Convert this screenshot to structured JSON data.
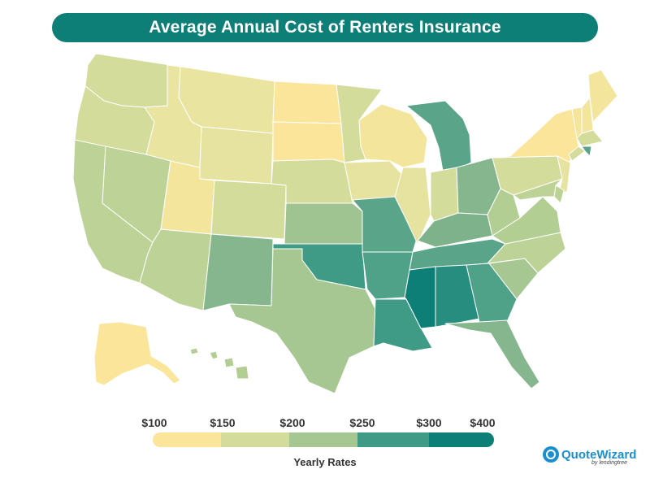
{
  "title": "Average Annual Cost of Renters Insurance",
  "legend": {
    "labels": [
      "$100",
      "$150",
      "$200",
      "$250",
      "$300",
      "$400"
    ],
    "colors": [
      "#fbe59b",
      "#d4dc9c",
      "#a6c791",
      "#73ad8a",
      "#3f9b86",
      "#0e7f77"
    ],
    "caption": "Yearly Rates"
  },
  "logo": {
    "name": "QuoteWizard",
    "sub": "by lendingtree"
  },
  "states": {
    "WA": "#d4dc9c",
    "OR": "#d4dc9c",
    "CA": "#bdd296",
    "NV": "#bdd296",
    "ID": "#e9e4a0",
    "MT": "#e9e4a0",
    "WY": "#e6e3a0",
    "UT": "#f3e59c",
    "AZ": "#bdd296",
    "CO": "#d4dc9c",
    "NM": "#85b68d",
    "ND": "#fbe59b",
    "SD": "#fbe59b",
    "NE": "#d4dc9c",
    "KS": "#9fc491",
    "OK": "#3f9b86",
    "TX": "#a6c791",
    "MN": "#d4dc9c",
    "IA": "#e6e3a0",
    "MO": "#5aa589",
    "AR": "#4fa188",
    "LA": "#3f9b86",
    "WI": "#f3e59c",
    "IL": "#e6e3a0",
    "MI": "#5aa589",
    "IN": "#d4dc9c",
    "OH": "#85b68d",
    "KY": "#7db28b",
    "TN": "#5aa589",
    "MS": "#0e7f77",
    "AL": "#278d7f",
    "GA": "#4fa188",
    "FL": "#85b68d",
    "SC": "#a6c791",
    "NC": "#bdd296",
    "VA": "#b3ce93",
    "WV": "#b3ce93",
    "PA": "#d4dc9c",
    "NY": "#fbe59b",
    "VT": "#f3e59c",
    "NH": "#f3e59c",
    "ME": "#f3e59c",
    "MA": "#d4dc9c",
    "RI": "#5aa589",
    "CT": "#d4dc9c",
    "NJ": "#e6e3a0",
    "DE": "#bdd296",
    "MD": "#bdd296",
    "AK": "#fbe59b",
    "HI": "#b3ce93"
  }
}
